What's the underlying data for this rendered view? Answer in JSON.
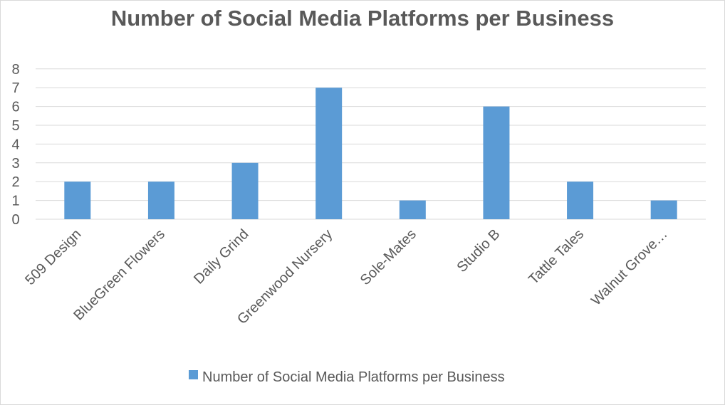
{
  "chart_data": {
    "type": "bar",
    "title": "Number of Social Media Platforms per Business",
    "categories": [
      "509 Design",
      "BlueGreen Flowers",
      "Daily Grind",
      "Greenwood Nursery",
      "Sole-Mates",
      "Studio B",
      "Tattle Tales",
      "Walnut Grove…"
    ],
    "series": [
      {
        "name": "Number of Social Media Platforms per Business",
        "values": [
          2,
          2,
          3,
          7,
          1,
          6,
          2,
          1
        ],
        "color": "#5b9bd5"
      }
    ],
    "y_ticks": [
      "0",
      "1",
      "2",
      "3",
      "4",
      "5",
      "6",
      "7",
      "8"
    ],
    "ylim": [
      0,
      8
    ],
    "grid": true,
    "legend_position": "bottom",
    "xlabel": "",
    "ylabel": ""
  }
}
